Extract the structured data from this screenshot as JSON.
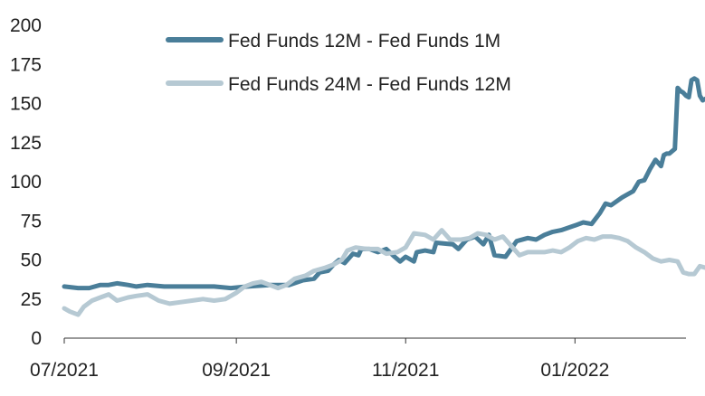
{
  "chart_data": {
    "type": "line",
    "title": "",
    "xlabel": "",
    "ylabel": "",
    "ylim": [
      0,
      200
    ],
    "yticks": [
      0,
      25,
      50,
      75,
      100,
      125,
      150,
      175,
      200
    ],
    "ytick_labels": [
      "0",
      "25",
      "50",
      "75",
      "100",
      "125",
      "150",
      "175",
      "200"
    ],
    "xlim": [
      "2021-07-01",
      "2022-02-10"
    ],
    "xticks": [
      {
        "value": "2021-07-01",
        "label": "07/2021"
      },
      {
        "value": "2021-09-01",
        "label": "09/2021"
      },
      {
        "value": "2021-11-01",
        "label": "11/2021"
      },
      {
        "value": "2022-01-01",
        "label": "01/2022"
      }
    ],
    "grid": false,
    "legend_position": "top",
    "series": [
      {
        "name": "Fed Funds 12M - Fed Funds 1M",
        "color": "#4a7e99",
        "points": [
          [
            "2021-07-01",
            33
          ],
          [
            "2021-07-06",
            32
          ],
          [
            "2021-07-10",
            32
          ],
          [
            "2021-07-14",
            34
          ],
          [
            "2021-07-17",
            34
          ],
          [
            "2021-07-20",
            35
          ],
          [
            "2021-07-24",
            34
          ],
          [
            "2021-07-27",
            33
          ],
          [
            "2021-07-31",
            34
          ],
          [
            "2021-08-06",
            33
          ],
          [
            "2021-08-14",
            33
          ],
          [
            "2021-08-24",
            33
          ],
          [
            "2021-08-30",
            32
          ],
          [
            "2021-09-05",
            33
          ],
          [
            "2021-09-13",
            34
          ],
          [
            "2021-09-20",
            34
          ],
          [
            "2021-09-25",
            37
          ],
          [
            "2021-09-29",
            38
          ],
          [
            "2021-10-01",
            42
          ],
          [
            "2021-10-04",
            43
          ],
          [
            "2021-10-06",
            47
          ],
          [
            "2021-10-08",
            50
          ],
          [
            "2021-10-10",
            48
          ],
          [
            "2021-10-13",
            54
          ],
          [
            "2021-10-15",
            53
          ],
          [
            "2021-10-16",
            57
          ],
          [
            "2021-10-19",
            57
          ],
          [
            "2021-10-22",
            55
          ],
          [
            "2021-10-25",
            57
          ],
          [
            "2021-10-28",
            52
          ],
          [
            "2021-10-30",
            49
          ],
          [
            "2021-11-01",
            52
          ],
          [
            "2021-11-04",
            49
          ],
          [
            "2021-11-05",
            55
          ],
          [
            "2021-11-08",
            56
          ],
          [
            "2021-11-11",
            55
          ],
          [
            "2021-11-12",
            61
          ],
          [
            "2021-11-18",
            60
          ],
          [
            "2021-11-20",
            57
          ],
          [
            "2021-11-23",
            63
          ],
          [
            "2021-11-26",
            65
          ],
          [
            "2021-11-29",
            60
          ],
          [
            "2021-12-01",
            66
          ],
          [
            "2021-12-03",
            53
          ],
          [
            "2021-12-07",
            52
          ],
          [
            "2021-12-11",
            62
          ],
          [
            "2021-12-15",
            64
          ],
          [
            "2021-12-18",
            63
          ],
          [
            "2021-12-21",
            66
          ],
          [
            "2021-12-24",
            68
          ],
          [
            "2021-12-27",
            69
          ],
          [
            "2022-01-01",
            72
          ],
          [
            "2022-01-04",
            74
          ],
          [
            "2022-01-07",
            73
          ],
          [
            "2022-01-10",
            80
          ],
          [
            "2022-01-12",
            86
          ],
          [
            "2022-01-14",
            85
          ],
          [
            "2022-01-18",
            90
          ],
          [
            "2022-01-22",
            94
          ],
          [
            "2022-01-24",
            100
          ],
          [
            "2022-01-26",
            101
          ],
          [
            "2022-01-28",
            108
          ],
          [
            "2022-01-30",
            114
          ],
          [
            "2022-02-01",
            110
          ],
          [
            "2022-02-02",
            117
          ],
          [
            "2022-02-03",
            118
          ],
          [
            "2022-02-04",
            118
          ],
          [
            "2022-02-06",
            121
          ],
          [
            "2022-02-07",
            160
          ],
          [
            "2022-02-08",
            158
          ],
          [
            "2022-02-09",
            157
          ],
          [
            "2022-02-10",
            155
          ],
          [
            "2022-02-11",
            154
          ],
          [
            "2022-02-12",
            165
          ],
          [
            "2022-02-13",
            166
          ],
          [
            "2022-02-14",
            165
          ],
          [
            "2022-02-15",
            155
          ],
          [
            "2022-02-16",
            152
          ],
          [
            "2022-02-17",
            153
          ]
        ]
      },
      {
        "name": "Fed Funds 24M - Fed Funds 12M",
        "color": "#b6c9d3",
        "points": [
          [
            "2021-07-01",
            19
          ],
          [
            "2021-07-03",
            17
          ],
          [
            "2021-07-06",
            15
          ],
          [
            "2021-07-08",
            20
          ],
          [
            "2021-07-11",
            24
          ],
          [
            "2021-07-14",
            26
          ],
          [
            "2021-07-17",
            28
          ],
          [
            "2021-07-20",
            24
          ],
          [
            "2021-07-24",
            26
          ],
          [
            "2021-07-27",
            27
          ],
          [
            "2021-07-31",
            28
          ],
          [
            "2021-08-04",
            24
          ],
          [
            "2021-08-08",
            22
          ],
          [
            "2021-08-12",
            23
          ],
          [
            "2021-08-16",
            24
          ],
          [
            "2021-08-20",
            25
          ],
          [
            "2021-08-24",
            24
          ],
          [
            "2021-08-28",
            25
          ],
          [
            "2021-09-01",
            29
          ],
          [
            "2021-09-04",
            33
          ],
          [
            "2021-09-07",
            35
          ],
          [
            "2021-09-10",
            36
          ],
          [
            "2021-09-13",
            34
          ],
          [
            "2021-09-16",
            32
          ],
          [
            "2021-09-19",
            34
          ],
          [
            "2021-09-22",
            38
          ],
          [
            "2021-09-26",
            40
          ],
          [
            "2021-09-29",
            43
          ],
          [
            "2021-10-03",
            45
          ],
          [
            "2021-10-06",
            47
          ],
          [
            "2021-10-09",
            50
          ],
          [
            "2021-10-11",
            56
          ],
          [
            "2021-10-14",
            58
          ],
          [
            "2021-10-18",
            57
          ],
          [
            "2021-10-22",
            57
          ],
          [
            "2021-10-25",
            54
          ],
          [
            "2021-10-29",
            55
          ],
          [
            "2021-11-01",
            58
          ],
          [
            "2021-11-04",
            67
          ],
          [
            "2021-11-08",
            66
          ],
          [
            "2021-11-11",
            63
          ],
          [
            "2021-11-14",
            69
          ],
          [
            "2021-11-17",
            63
          ],
          [
            "2021-11-21",
            63
          ],
          [
            "2021-11-24",
            64
          ],
          [
            "2021-11-27",
            67
          ],
          [
            "2021-11-30",
            66
          ],
          [
            "2021-12-03",
            63
          ],
          [
            "2021-12-06",
            65
          ],
          [
            "2021-12-09",
            59
          ],
          [
            "2021-12-12",
            53
          ],
          [
            "2021-12-15",
            55
          ],
          [
            "2021-12-18",
            55
          ],
          [
            "2021-12-21",
            55
          ],
          [
            "2021-12-24",
            56
          ],
          [
            "2021-12-27",
            55
          ],
          [
            "2021-12-30",
            58
          ],
          [
            "2022-01-02",
            62
          ],
          [
            "2022-01-05",
            64
          ],
          [
            "2022-01-08",
            63
          ],
          [
            "2022-01-11",
            65
          ],
          [
            "2022-01-14",
            65
          ],
          [
            "2022-01-17",
            64
          ],
          [
            "2022-01-20",
            62
          ],
          [
            "2022-01-23",
            58
          ],
          [
            "2022-01-26",
            55
          ],
          [
            "2022-01-29",
            51
          ],
          [
            "2022-02-01",
            49
          ],
          [
            "2022-02-04",
            50
          ],
          [
            "2022-02-07",
            49
          ],
          [
            "2022-02-09",
            42
          ],
          [
            "2022-02-11",
            41
          ],
          [
            "2022-02-13",
            41
          ],
          [
            "2022-02-15",
            46
          ],
          [
            "2022-02-17",
            45
          ]
        ]
      }
    ]
  }
}
